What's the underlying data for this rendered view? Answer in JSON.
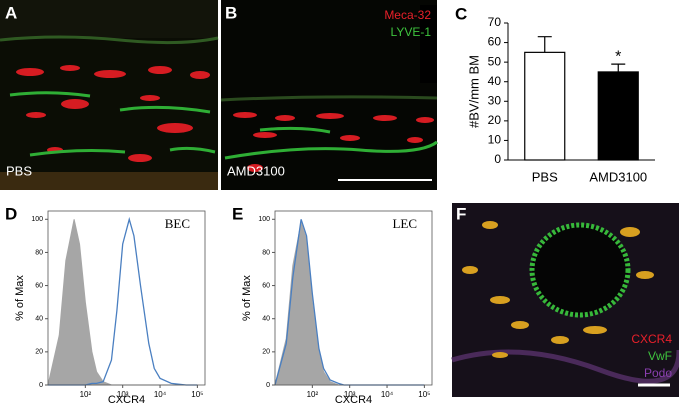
{
  "images": [
    {
      "label": "A",
      "caption": "PBS"
    },
    {
      "label": "B",
      "caption": "AMD3100",
      "legend": [
        "Meca-32",
        "LYVE-1"
      ],
      "legend_colors": [
        "#e8202a",
        "#3ec43e"
      ]
    },
    {
      "label": "F",
      "legend": [
        "CXCR4",
        "VwF",
        "Podo"
      ],
      "legend_colors": [
        "#e8202a",
        "#3ec43e",
        "#8a3fb0"
      ]
    }
  ],
  "chart_data": [
    {
      "label": "C",
      "type": "bar",
      "ylabel": "#BV/mm BM",
      "categories": [
        "PBS",
        "AMD3100"
      ],
      "values": [
        55,
        45
      ],
      "errors": [
        8,
        4
      ],
      "colors": [
        "#ffffff",
        "#000000"
      ],
      "annotation": "*",
      "ylim": [
        0,
        70
      ],
      "yticks": [
        0,
        10,
        20,
        30,
        40,
        50,
        60,
        70
      ]
    },
    {
      "label": "D",
      "type": "line",
      "title": "BEC",
      "ylabel": "% of Max",
      "xlabel": "CXCR4",
      "xscale": "log",
      "x": [
        10,
        20,
        30,
        50,
        70,
        100,
        150,
        200,
        300,
        500,
        700,
        1000,
        1500,
        2000,
        3000,
        5000,
        7000,
        10000,
        20000,
        50000,
        100000
      ],
      "series": [
        {
          "color": "#a6a6a6",
          "area": true,
          "values": [
            0,
            30,
            75,
            100,
            85,
            50,
            20,
            8,
            2,
            0,
            0,
            0,
            0,
            0,
            0,
            0,
            0,
            0,
            0,
            0,
            0
          ]
        },
        {
          "color": "#4a7fc1",
          "area": false,
          "values": [
            0,
            0,
            0,
            0,
            0,
            0,
            1,
            1,
            2,
            15,
            45,
            85,
            100,
            90,
            60,
            25,
            10,
            4,
            1,
            0,
            0
          ]
        }
      ],
      "xlim": [
        10,
        160000
      ],
      "xticks": [
        {
          "value": 100,
          "label": "10²"
        },
        {
          "value": 1000,
          "label": "10³"
        },
        {
          "value": 10000,
          "label": "10⁴"
        },
        {
          "value": 100000,
          "label": "10⁵"
        }
      ],
      "ylim": [
        0,
        105
      ],
      "yticks": [
        0,
        20,
        40,
        60,
        80,
        100
      ]
    },
    {
      "label": "E",
      "type": "line",
      "title": "LEC",
      "ylabel": "% of Max",
      "xlabel": "CXCR4",
      "xscale": "log",
      "x": [
        10,
        20,
        30,
        50,
        70,
        100,
        150,
        200,
        300,
        500,
        700,
        1000,
        1500,
        2000,
        3000,
        5000,
        7000,
        10000,
        20000,
        50000,
        100000
      ],
      "series": [
        {
          "color": "#a6a6a6",
          "area": true,
          "values": [
            0,
            28,
            72,
            98,
            88,
            50,
            20,
            8,
            2,
            0,
            0,
            0,
            0,
            0,
            0,
            0,
            0,
            0,
            0,
            0,
            0
          ]
        },
        {
          "color": "#4a7fc1",
          "area": false,
          "values": [
            0,
            25,
            65,
            100,
            90,
            55,
            22,
            10,
            3,
            1,
            0,
            0,
            0,
            0,
            0,
            0,
            0,
            0,
            0,
            0,
            0
          ]
        }
      ],
      "xlim": [
        10,
        160000
      ],
      "xticks": [
        {
          "value": 100,
          "label": "10²"
        },
        {
          "value": 1000,
          "label": "10³"
        },
        {
          "value": 10000,
          "label": "10⁴"
        },
        {
          "value": 100000,
          "label": "10⁵"
        }
      ],
      "ylim": [
        0,
        105
      ],
      "yticks": [
        0,
        20,
        40,
        60,
        80,
        100
      ]
    }
  ]
}
